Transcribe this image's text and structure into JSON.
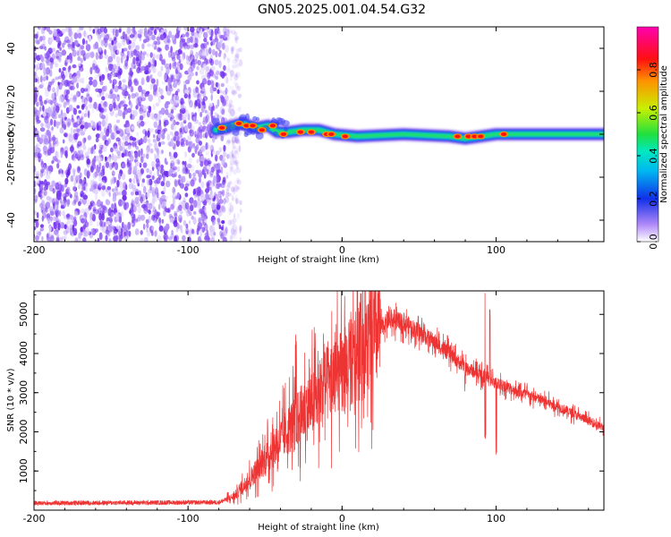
{
  "title": "GN05.2025.001.04.54.G32",
  "chart_data": [
    {
      "type": "heatmap",
      "xlabel": "Height of straight line (km)",
      "ylabel": "Frequency (Hz)",
      "xlim": [
        -200,
        170
      ],
      "ylim": [
        -50,
        50
      ],
      "xticks": [
        -200,
        -100,
        0,
        100
      ],
      "yticks": [
        -40,
        -20,
        0,
        20,
        40
      ],
      "grid": false,
      "colorbar": {
        "label": "Normalized spectral amplitude",
        "range": [
          0,
          1
        ],
        "ticks": [
          0.0,
          0.2,
          0.4,
          0.6,
          0.8
        ],
        "colors": [
          "#ffffff",
          "#7a3cf0",
          "#0a2ce0",
          "#00d8f0",
          "#20e060",
          "#c8f000",
          "#ff8000",
          "#ff0030",
          "#ff00b0"
        ]
      },
      "noise_region": {
        "x_from": -200,
        "x_to": -75
      },
      "ridge": [
        {
          "x": -82,
          "y": 2
        },
        {
          "x": -75,
          "y": 3
        },
        {
          "x": -65,
          "y": 5
        },
        {
          "x": -55,
          "y": 3
        },
        {
          "x": -48,
          "y": 4
        },
        {
          "x": -42,
          "y": 1
        },
        {
          "x": -35,
          "y": 1
        },
        {
          "x": -25,
          "y": 2
        },
        {
          "x": -15,
          "y": 2
        },
        {
          "x": -5,
          "y": 0
        },
        {
          "x": 10,
          "y": -1
        },
        {
          "x": 40,
          "y": 0
        },
        {
          "x": 70,
          "y": -1
        },
        {
          "x": 80,
          "y": -2
        },
        {
          "x": 90,
          "y": -1
        },
        {
          "x": 100,
          "y": 0
        },
        {
          "x": 130,
          "y": 0
        },
        {
          "x": 170,
          "y": 0
        }
      ],
      "peaks": [
        {
          "x": -78,
          "y": 3
        },
        {
          "x": -67,
          "y": 5
        },
        {
          "x": -62,
          "y": 4
        },
        {
          "x": -58,
          "y": 4
        },
        {
          "x": -52,
          "y": 2
        },
        {
          "x": -45,
          "y": 4
        },
        {
          "x": -38,
          "y": 0
        },
        {
          "x": -27,
          "y": 1
        },
        {
          "x": -20,
          "y": 1
        },
        {
          "x": -10,
          "y": 0
        },
        {
          "x": -7,
          "y": 0
        },
        {
          "x": 2,
          "y": -1
        },
        {
          "x": 75,
          "y": -1
        },
        {
          "x": 82,
          "y": -1
        },
        {
          "x": 86,
          "y": -1
        },
        {
          "x": 90,
          "y": -1
        },
        {
          "x": 105,
          "y": 0
        }
      ]
    },
    {
      "type": "line",
      "xlabel": "Height of straight line (km)",
      "ylabel": "SNR (10 * v/v)",
      "xlim": [
        -200,
        170
      ],
      "ylim": [
        0,
        5600
      ],
      "xticks": [
        -200,
        -100,
        0,
        100
      ],
      "yticks": [
        1000,
        2000,
        3000,
        4000,
        5000
      ],
      "grid": false,
      "color": "#ee3333",
      "envelope": [
        {
          "x": -200,
          "y": 180
        },
        {
          "x": -80,
          "y": 200
        },
        {
          "x": -70,
          "y": 350
        },
        {
          "x": -60,
          "y": 800
        },
        {
          "x": -50,
          "y": 1300
        },
        {
          "x": -40,
          "y": 1800
        },
        {
          "x": -30,
          "y": 2300
        },
        {
          "x": -20,
          "y": 2700
        },
        {
          "x": -10,
          "y": 3200
        },
        {
          "x": 0,
          "y": 3500
        },
        {
          "x": 10,
          "y": 3900
        },
        {
          "x": 20,
          "y": 4400
        },
        {
          "x": 30,
          "y": 4850
        },
        {
          "x": 40,
          "y": 4800
        },
        {
          "x": 60,
          "y": 4300
        },
        {
          "x": 80,
          "y": 3650
        },
        {
          "x": 100,
          "y": 3250
        },
        {
          "x": 120,
          "y": 2950
        },
        {
          "x": 140,
          "y": 2650
        },
        {
          "x": 170,
          "y": 2100
        }
      ],
      "spikes": [
        {
          "x": -30,
          "y": 4550
        },
        {
          "x": -12,
          "y": 4600
        },
        {
          "x": 2,
          "y": 5500
        },
        {
          "x": 6,
          "y": 5300
        },
        {
          "x": 12,
          "y": 5550
        },
        {
          "x": 93,
          "y": 5700
        },
        {
          "x": 96,
          "y": 5200
        }
      ],
      "dips": [
        {
          "x": 80,
          "y": 3000
        },
        {
          "x": 93,
          "y": 1800
        },
        {
          "x": 95,
          "y": 1700
        },
        {
          "x": 100,
          "y": 1400
        }
      ]
    }
  ]
}
